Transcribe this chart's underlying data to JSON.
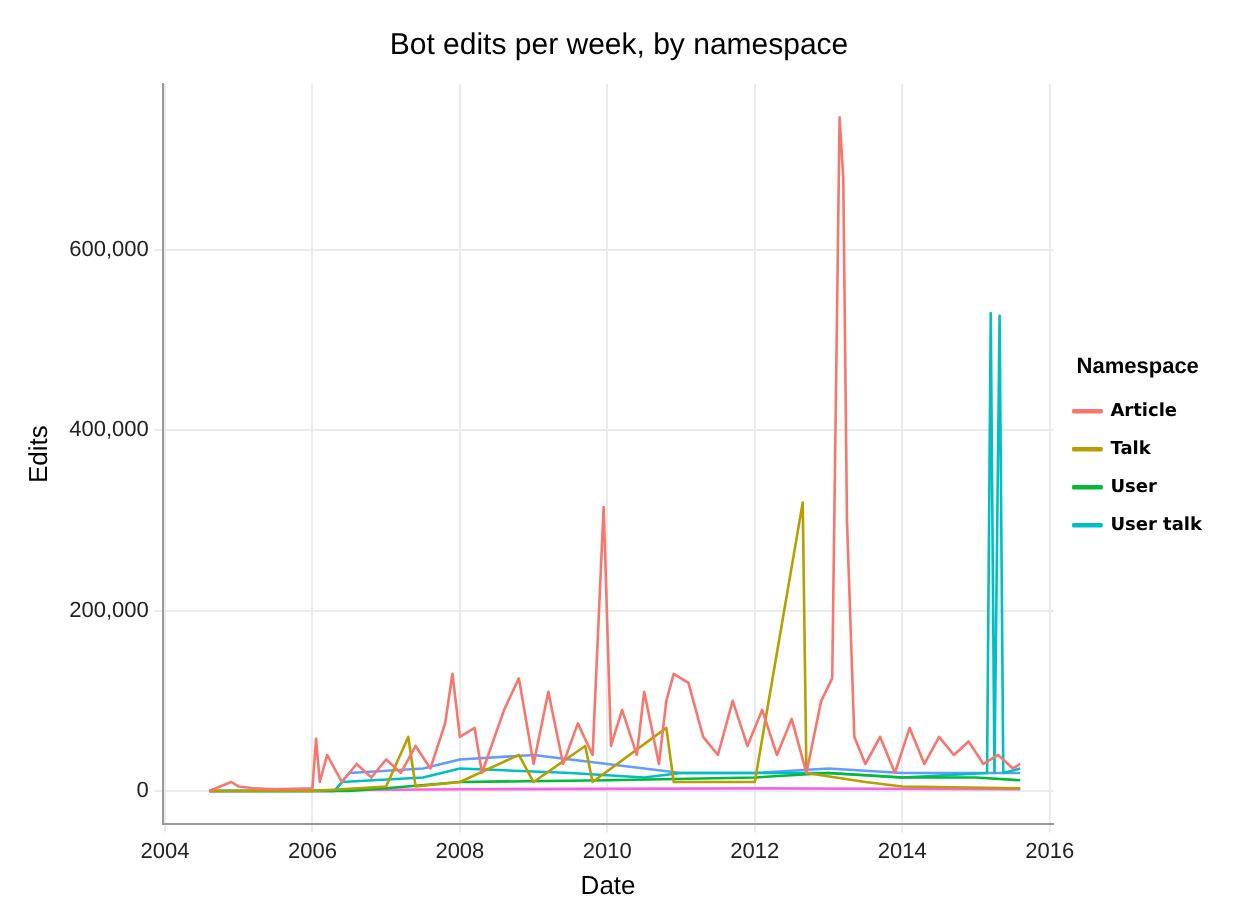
{
  "chart_data": {
    "type": "line",
    "title": "Bot edits per week, by namespace",
    "xlabel": "Date",
    "ylabel": "Edits",
    "legend_title": "Namespace",
    "legend": "right",
    "grid": true,
    "marker": "none",
    "line_style": "solid",
    "xlim": [
      2003.97,
      2016.05
    ],
    "xticks": [
      2004,
      2006,
      2008,
      2010,
      2012,
      2014,
      2016
    ],
    "ylim": [
      -37000,
      784000
    ],
    "yticks": [
      {
        "value": 0,
        "label": "0"
      },
      {
        "value": 200000,
        "label": "200,000"
      },
      {
        "value": 400000,
        "label": "400,000"
      },
      {
        "value": 600000,
        "label": "600,000"
      }
    ],
    "series": [
      {
        "name": "Article",
        "color": "#f8766d",
        "x": [
          2004.6,
          2004.9,
          2005.0,
          2005.2,
          2005.5,
          2006.0,
          2006.05,
          2006.1,
          2006.2,
          2006.4,
          2006.6,
          2006.8,
          2007.0,
          2007.2,
          2007.4,
          2007.6,
          2007.8,
          2007.9,
          2008.0,
          2008.2,
          2008.3,
          2008.6,
          2008.8,
          2009.0,
          2009.2,
          2009.4,
          2009.6,
          2009.8,
          2009.95,
          2010.05,
          2010.2,
          2010.4,
          2010.5,
          2010.7,
          2010.8,
          2010.9,
          2011.1,
          2011.3,
          2011.5,
          2011.7,
          2011.9,
          2012.1,
          2012.3,
          2012.5,
          2012.7,
          2012.9,
          2013.05,
          2013.15,
          2013.2,
          2013.25,
          2013.35,
          2013.5,
          2013.7,
          2013.9,
          2014.1,
          2014.3,
          2014.5,
          2014.7,
          2014.9,
          2015.1,
          2015.3,
          2015.5,
          2015.6
        ],
        "values": [
          0,
          10000,
          5000,
          3000,
          2000,
          3000,
          58000,
          10000,
          40000,
          10000,
          30000,
          15000,
          35000,
          20000,
          50000,
          25000,
          75000,
          130000,
          60000,
          70000,
          20000,
          90000,
          125000,
          30000,
          110000,
          30000,
          75000,
          40000,
          315000,
          50000,
          90000,
          40000,
          110000,
          30000,
          100000,
          130000,
          120000,
          60000,
          40000,
          100000,
          50000,
          90000,
          40000,
          80000,
          20000,
          100000,
          125000,
          747000,
          680000,
          300000,
          60000,
          30000,
          60000,
          20000,
          70000,
          30000,
          60000,
          40000,
          55000,
          30000,
          40000,
          25000,
          30000
        ]
      },
      {
        "name": "Talk",
        "color": "#b79f00",
        "x": [
          2004.6,
          2006.0,
          2007.0,
          2007.3,
          2007.4,
          2008.0,
          2008.8,
          2009.0,
          2009.7,
          2009.8,
          2010.8,
          2010.9,
          2012.0,
          2012.65,
          2012.7,
          2013.5,
          2014.0,
          2015.6
        ],
        "values": [
          0,
          0,
          5000,
          60000,
          5000,
          10000,
          40000,
          10000,
          50000,
          10000,
          70000,
          10000,
          10000,
          320000,
          20000,
          10000,
          5000,
          3000
        ]
      },
      {
        "name": "User",
        "color": "#00ba38",
        "x": [
          2004.6,
          2006.5,
          2007.0,
          2008.0,
          2010.0,
          2012.0,
          2013.0,
          2014.0,
          2015.0,
          2015.6
        ],
        "values": [
          0,
          0,
          3000,
          10000,
          12000,
          15000,
          20000,
          15000,
          15000,
          12000
        ]
      },
      {
        "name": "User talk",
        "color": "#00bfc4",
        "x": [
          2004.6,
          2006.3,
          2006.4,
          2007.5,
          2008.0,
          2009.5,
          2010.5,
          2011.0,
          2012.0,
          2013.0,
          2014.0,
          2015.15,
          2015.2,
          2015.25,
          2015.32,
          2015.37,
          2015.6
        ],
        "values": [
          0,
          0,
          10000,
          15000,
          25000,
          20000,
          15000,
          20000,
          20000,
          20000,
          15000,
          20000,
          530000,
          20000,
          527000,
          20000,
          25000
        ]
      },
      {
        "color": "#619cff",
        "x": [
          2004.6,
          2006.3,
          2006.5,
          2007.5,
          2008.0,
          2009.0,
          2010.0,
          2011.0,
          2012.0,
          2013.0,
          2014.0,
          2015.0,
          2015.6
        ],
        "values": [
          0,
          0,
          20000,
          25000,
          35000,
          40000,
          30000,
          20000,
          20000,
          25000,
          20000,
          20000,
          20000
        ]
      },
      {
        "color": "#f564e3",
        "x": [
          2004.6,
          2008.0,
          2012.0,
          2015.6
        ],
        "values": [
          0,
          2000,
          3000,
          2000
        ]
      }
    ]
  }
}
